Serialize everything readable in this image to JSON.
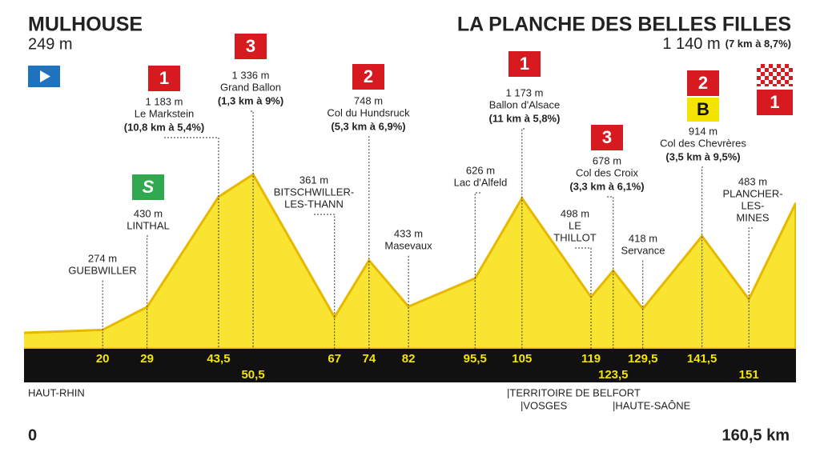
{
  "start": {
    "name": "MULHOUSE",
    "altitude": {
      "value": 249,
      "label": "249 m"
    },
    "km": {
      "value": 0,
      "label": "0"
    }
  },
  "finish": {
    "name": "LA PLANCHE DES BELLES FILLES",
    "altitude": {
      "value": 1140,
      "label": "1 140 m"
    },
    "climb": "(7 km à 8,7%)",
    "category": "1",
    "km": {
      "value": 160.5,
      "label": "160,5 km"
    }
  },
  "points": [
    {
      "km": {
        "value": 20,
        "label": "20"
      },
      "altitude": {
        "value": 274,
        "label": "274 m"
      },
      "name": [
        "GUEBWILLER"
      ]
    },
    {
      "km": {
        "value": 29,
        "label": "29"
      },
      "altitude": {
        "value": 430,
        "label": "430 m"
      },
      "name": [
        "LINTHAL"
      ],
      "category": "S"
    },
    {
      "km": {
        "value": 43.5,
        "label": "43,5"
      },
      "altitude": {
        "value": 1183,
        "label": "1 183 m"
      },
      "name": [
        "Le Markstein"
      ],
      "climb": "(10,8 km à 5,4%)",
      "category": "1"
    },
    {
      "km": {
        "value": 50.5,
        "label": "50,5"
      },
      "altitude": {
        "value": 1336,
        "label": "1 336 m"
      },
      "name": [
        "Grand Ballon"
      ],
      "climb": "(1,3 km à 9%)",
      "category": "3"
    },
    {
      "km": {
        "value": 67,
        "label": "67"
      },
      "altitude": {
        "value": 361,
        "label": "361 m"
      },
      "name": [
        "BITSCHWILLER-",
        "LES-THANN"
      ]
    },
    {
      "km": {
        "value": 74,
        "label": "74"
      },
      "altitude": {
        "value": 748,
        "label": "748 m"
      },
      "name": [
        "Col du Hundsruck"
      ],
      "climb": "(5,3 km à 6,9%)",
      "category": "2"
    },
    {
      "km": {
        "value": 82,
        "label": "82"
      },
      "altitude": {
        "value": 433,
        "label": "433 m"
      },
      "name": [
        "Masevaux"
      ]
    },
    {
      "km": {
        "value": 95.5,
        "label": "95,5"
      },
      "altitude": {
        "value": 626,
        "label": "626 m"
      },
      "name": [
        "Lac d'Alfeld"
      ]
    },
    {
      "km": {
        "value": 105,
        "label": "105"
      },
      "altitude": {
        "value": 1173,
        "label": "1 173 m"
      },
      "name": [
        "Ballon d'Alsace"
      ],
      "climb": "(11 km à 5,8%)",
      "category": "1"
    },
    {
      "km": {
        "value": 119,
        "label": "119"
      },
      "altitude": {
        "value": 498,
        "label": "498 m"
      },
      "name": [
        "LE",
        "THILLOT"
      ]
    },
    {
      "km": {
        "value": 123.5,
        "label": "123,5"
      },
      "altitude": {
        "value": 678,
        "label": "678 m"
      },
      "name": [
        "Col des Croix"
      ],
      "climb": "(3,3 km à 6,1%)",
      "category": "3"
    },
    {
      "km": {
        "value": 129.5,
        "label": "129,5"
      },
      "altitude": {
        "value": 418,
        "label": "418 m"
      },
      "name": [
        "Servance"
      ]
    },
    {
      "km": {
        "value": 141.5,
        "label": "141,5"
      },
      "altitude": {
        "value": 914,
        "label": "914 m"
      },
      "name": [
        "Col des Chevrères"
      ],
      "climb": "(3,5 km à 9,5%)",
      "category": "2",
      "bonus": "B"
    },
    {
      "km": {
        "value": 151,
        "label": "151"
      },
      "altitude": {
        "value": 483,
        "label": "483 m"
      },
      "name": [
        "PLANCHER-",
        "LES-",
        "MINES"
      ]
    }
  ],
  "regions": [
    "HAUT-RHIN",
    "|TERRITOIRE DE BELFORT",
    "|VOSGES",
    "|HAUTE-SAÔNE"
  ]
}
